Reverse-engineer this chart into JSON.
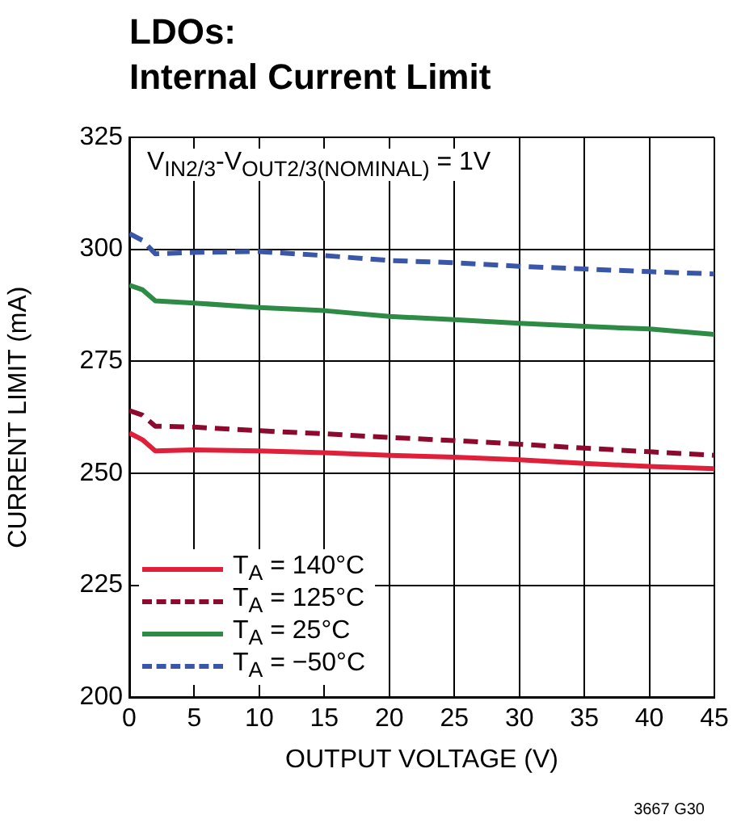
{
  "chart_data": {
    "type": "line",
    "title": "LDOs:\nInternal Current Limit",
    "xlabel": "OUTPUT VOLTAGE (V)",
    "ylabel": "CURRENT LIMIT (mA)",
    "xlim": [
      0,
      45
    ],
    "xticks": [
      0,
      5,
      10,
      15,
      20,
      25,
      30,
      35,
      40,
      45
    ],
    "ylim": [
      200,
      325
    ],
    "yticks": [
      200,
      225,
      250,
      275,
      300,
      325
    ],
    "grid": true,
    "legend": "bottom left",
    "marker": "none",
    "annotations": [
      "V$_{IN2/3}$-V$_{OUT2/3(NOMINAL)}$ = 1V",
      "3667 G30"
    ],
    "series": [
      {
        "name": "T$_{A}$ = 140°C",
        "color": "#e0203a",
        "line_style": "solid",
        "x": [
          0,
          1,
          2,
          5,
          10,
          15,
          20,
          25,
          30,
          35,
          40,
          45
        ],
        "values": [
          259,
          257.5,
          255,
          255.2,
          255,
          254.6,
          254,
          253.6,
          253,
          252.2,
          251.5,
          251
        ]
      },
      {
        "name": "T$_{A}$ = 125°C",
        "color": "#8b0a2e",
        "line_style": "dashed",
        "x": [
          0,
          1,
          2,
          5,
          10,
          15,
          20,
          25,
          30,
          35,
          40,
          45
        ],
        "values": [
          264,
          263,
          260.5,
          260.3,
          259.5,
          258.8,
          258,
          257.3,
          256.5,
          255.6,
          254.8,
          254
        ]
      },
      {
        "name": "T$_{A}$ = 25°C",
        "color": "#2e8b46",
        "line_style": "solid",
        "x": [
          0,
          1,
          2,
          5,
          10,
          15,
          20,
          25,
          30,
          35,
          40,
          45
        ],
        "values": [
          292,
          291,
          288.5,
          288,
          287,
          286.3,
          285,
          284.3,
          283.5,
          282.8,
          282.2,
          281
        ]
      },
      {
        "name": "T$_{A}$ = −50°C",
        "color": "#3a56a8",
        "line_style": "dashed",
        "x": [
          0,
          1,
          2,
          5,
          10,
          15,
          20,
          25,
          30,
          35,
          40,
          45
        ],
        "values": [
          303.5,
          302,
          299,
          299.3,
          299.5,
          298.6,
          297.5,
          297,
          296.2,
          295.6,
          295,
          294.5
        ]
      }
    ]
  }
}
